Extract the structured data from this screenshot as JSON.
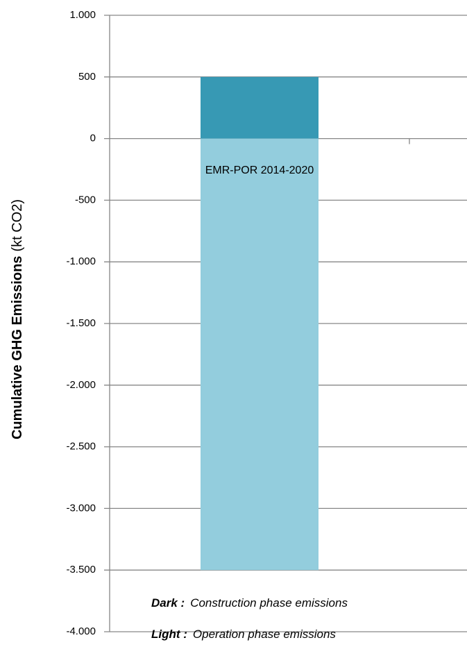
{
  "chart_data": {
    "type": "stacked_bar",
    "ylabel": "Cumulative GHG Emissions",
    "ylabel_unit": "(kt CO2)",
    "categories": [
      "EMR-POR 2014-2020"
    ],
    "series": [
      {
        "name": "Construction phase emissions",
        "legend_key": "Dark :",
        "color": "#3799b4",
        "values": [
          500
        ]
      },
      {
        "name": "Operation phase emissions",
        "legend_key": "Light :",
        "color": "#93cddd",
        "values": [
          -3500
        ]
      }
    ],
    "ylim": [
      -4000,
      1000
    ],
    "yticks": [
      {
        "value": 1000,
        "label": "1.000"
      },
      500,
      0,
      -500,
      {
        "value": -1000,
        "label": "-1.000"
      },
      {
        "value": -1500,
        "label": "-1.500"
      },
      {
        "value": -2000,
        "label": "-2.000"
      },
      {
        "value": -2500,
        "label": "-2.500"
      },
      {
        "value": -3000,
        "label": "-3.000"
      },
      {
        "value": -3500,
        "label": "-3.500"
      },
      {
        "value": -4000,
        "label": "-4.000"
      }
    ],
    "grid": true
  }
}
